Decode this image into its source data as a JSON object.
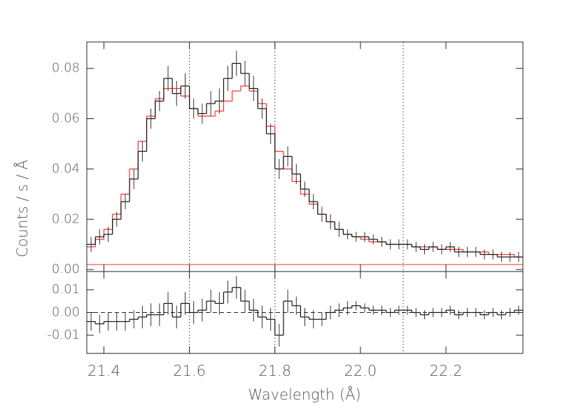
{
  "chart_data": [
    {
      "type": "step",
      "y_label": "Counts / s / Å",
      "xlim": [
        21.36,
        22.38
      ],
      "ylim": [
        -0.0008,
        0.0905
      ],
      "yticks": [
        {
          "value": 0,
          "label": "0.00"
        },
        {
          "value": 0.02,
          "label": "0.02"
        },
        {
          "value": 0.04,
          "label": "0.04"
        },
        {
          "value": 0.06,
          "label": "0.06"
        },
        {
          "value": 0.08,
          "label": "0.08"
        }
      ],
      "vlines": [
        21.6,
        21.8,
        22.1
      ],
      "hline": 0.002,
      "hline_color": "#ff2a2a",
      "x": [
        21.37,
        21.39,
        21.41,
        21.43,
        21.45,
        21.47,
        21.49,
        21.51,
        21.53,
        21.55,
        21.57,
        21.59,
        21.61,
        21.63,
        21.65,
        21.67,
        21.69,
        21.71,
        21.73,
        21.75,
        21.77,
        21.79,
        21.81,
        21.83,
        21.85,
        21.87,
        21.89,
        21.91,
        21.93,
        21.95,
        21.97,
        21.99,
        22.01,
        22.03,
        22.05,
        22.07,
        22.09,
        22.11,
        22.13,
        22.15,
        22.17,
        22.19,
        22.21,
        22.23,
        22.25,
        22.27,
        22.29,
        22.31,
        22.33,
        22.35,
        22.37
      ],
      "series": [
        {
          "color": "#ff2a2a",
          "values": [
            0.009,
            0.012,
            0.016,
            0.022,
            0.03,
            0.04,
            0.051,
            0.061,
            0.068,
            0.072,
            0.072,
            0.069,
            0.064,
            0.061,
            0.061,
            0.063,
            0.067,
            0.071,
            0.073,
            0.071,
            0.066,
            0.057,
            0.047,
            0.04,
            0.035,
            0.03,
            0.026,
            0.022,
            0.019,
            0.016,
            0.014,
            0.013,
            0.012,
            0.011,
            0.011,
            0.01,
            0.01,
            0.01,
            0.009,
            0.009,
            0.009,
            0.008,
            0.008,
            0.008,
            0.007,
            0.007,
            0.007,
            0.006,
            0.006,
            0.006,
            0.005
          ]
        },
        {
          "color": "#111111",
          "values": [
            0.01,
            0.013,
            0.014,
            0.02,
            0.027,
            0.036,
            0.047,
            0.06,
            0.067,
            0.076,
            0.07,
            0.073,
            0.064,
            0.062,
            0.066,
            0.067,
            0.076,
            0.082,
            0.078,
            0.072,
            0.064,
            0.054,
            0.04,
            0.045,
            0.038,
            0.032,
            0.027,
            0.022,
            0.019,
            0.016,
            0.014,
            0.013,
            0.013,
            0.012,
            0.011,
            0.01,
            0.01,
            0.01,
            0.009,
            0.008,
            0.009,
            0.008,
            0.009,
            0.007,
            0.007,
            0.007,
            0.006,
            0.006,
            0.005,
            0.005,
            0.005
          ],
          "errors": [
            0.003,
            0.003,
            0.003,
            0.003,
            0.003,
            0.004,
            0.004,
            0.004,
            0.004,
            0.005,
            0.005,
            0.005,
            0.004,
            0.004,
            0.005,
            0.005,
            0.005,
            0.005,
            0.005,
            0.005,
            0.004,
            0.004,
            0.004,
            0.004,
            0.004,
            0.003,
            0.003,
            0.003,
            0.003,
            0.003,
            0.002,
            0.002,
            0.002,
            0.002,
            0.002,
            0.002,
            0.002,
            0.002,
            0.002,
            0.002,
            0.002,
            0.002,
            0.002,
            0.002,
            0.002,
            0.002,
            0.002,
            0.002,
            0.002,
            0.002,
            0.002
          ]
        }
      ]
    },
    {
      "type": "step",
      "x_label": "Wavelength (Å)",
      "xlim": [
        21.36,
        22.38
      ],
      "ylim": [
        -0.018,
        0.018
      ],
      "xticks": [
        {
          "value": 21.4,
          "label": "21.4"
        },
        {
          "value": 21.6,
          "label": "21.6"
        },
        {
          "value": 21.8,
          "label": "21.8"
        },
        {
          "value": 22.0,
          "label": "22.0"
        },
        {
          "value": 22.2,
          "label": "22.2"
        }
      ],
      "yticks": [
        {
          "value": -0.01,
          "label": "-0.01"
        },
        {
          "value": 0,
          "label": "0.00"
        },
        {
          "value": 0.01,
          "label": "0.01"
        }
      ],
      "hline": 0,
      "hline_color": "#222222",
      "x": [
        21.37,
        21.39,
        21.41,
        21.43,
        21.45,
        21.47,
        21.49,
        21.51,
        21.53,
        21.55,
        21.57,
        21.59,
        21.61,
        21.63,
        21.65,
        21.67,
        21.69,
        21.71,
        21.73,
        21.75,
        21.77,
        21.79,
        21.81,
        21.83,
        21.85,
        21.87,
        21.89,
        21.91,
        21.93,
        21.95,
        21.97,
        21.99,
        22.01,
        22.03,
        22.05,
        22.07,
        22.09,
        22.11,
        22.13,
        22.15,
        22.17,
        22.19,
        22.21,
        22.23,
        22.25,
        22.27,
        22.29,
        22.31,
        22.33,
        22.35,
        22.37
      ],
      "series": [
        {
          "color": "#111111",
          "values": [
            -0.004,
            -0.005,
            -0.004,
            -0.004,
            -0.004,
            -0.003,
            -0.002,
            -0.001,
            -0.001,
            0.004,
            -0.002,
            0.004,
            0.0,
            0.001,
            0.005,
            0.004,
            0.009,
            0.011,
            0.005,
            0.001,
            -0.002,
            -0.003,
            -0.01,
            0.005,
            0.003,
            -0.002,
            -0.003,
            -0.003,
            0.0,
            0.001,
            0.002,
            0.003,
            0.002,
            0.001,
            0.001,
            0.0,
            0.001,
            0.001,
            0.0,
            -0.001,
            0.0,
            0.0,
            0.001,
            -0.001,
            0.0,
            0.0,
            -0.001,
            0.0,
            -0.001,
            0.0,
            0.001
          ],
          "errors": [
            0.004,
            0.004,
            0.004,
            0.004,
            0.004,
            0.004,
            0.005,
            0.005,
            0.005,
            0.005,
            0.005,
            0.005,
            0.005,
            0.005,
            0.005,
            0.005,
            0.005,
            0.005,
            0.005,
            0.005,
            0.005,
            0.005,
            0.005,
            0.005,
            0.004,
            0.004,
            0.004,
            0.003,
            0.003,
            0.003,
            0.003,
            0.002,
            0.002,
            0.002,
            0.002,
            0.002,
            0.002,
            0.002,
            0.002,
            0.002,
            0.002,
            0.002,
            0.002,
            0.002,
            0.002,
            0.002,
            0.002,
            0.002,
            0.002,
            0.002,
            0.002
          ]
        }
      ]
    }
  ]
}
